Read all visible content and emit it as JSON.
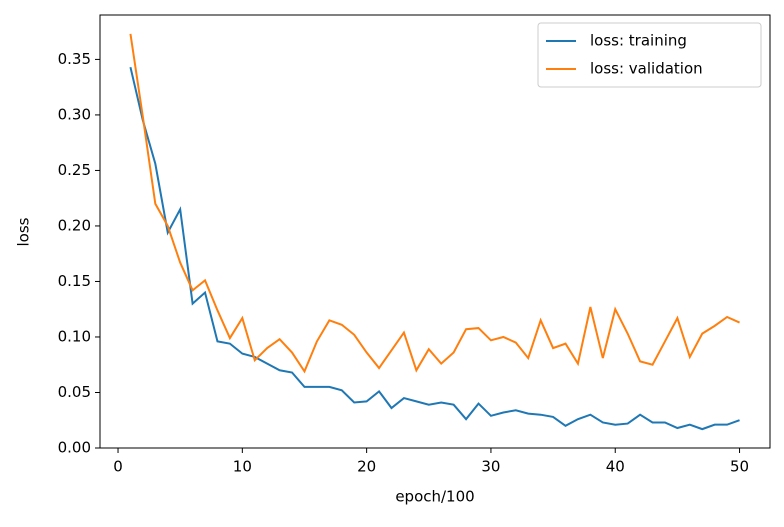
{
  "chart_data": {
    "type": "line",
    "xlabel": "epoch/100",
    "ylabel": "loss",
    "x": [
      1,
      2,
      3,
      4,
      5,
      6,
      7,
      8,
      9,
      10,
      11,
      12,
      13,
      14,
      15,
      16,
      17,
      18,
      19,
      20,
      21,
      22,
      23,
      24,
      25,
      26,
      27,
      28,
      29,
      30,
      31,
      32,
      33,
      34,
      35,
      36,
      37,
      38,
      39,
      40,
      41,
      42,
      43,
      44,
      45,
      46,
      47,
      48,
      49,
      50
    ],
    "series": [
      {
        "name": "loss: training",
        "color": "#1f77b4",
        "values": [
          0.343,
          0.295,
          0.256,
          0.194,
          0.215,
          0.13,
          0.14,
          0.096,
          0.094,
          0.085,
          0.082,
          0.076,
          0.07,
          0.068,
          0.055,
          0.055,
          0.055,
          0.052,
          0.041,
          0.042,
          0.051,
          0.036,
          0.045,
          0.042,
          0.039,
          0.041,
          0.039,
          0.026,
          0.04,
          0.029,
          0.032,
          0.034,
          0.031,
          0.03,
          0.028,
          0.02,
          0.026,
          0.03,
          0.023,
          0.021,
          0.022,
          0.03,
          0.023,
          0.023,
          0.018,
          0.021,
          0.017,
          0.021,
          0.021,
          0.025
        ]
      },
      {
        "name": "loss: validation",
        "color": "#ff7f0e",
        "values": [
          0.373,
          0.298,
          0.22,
          0.2,
          0.167,
          0.142,
          0.151,
          0.124,
          0.099,
          0.117,
          0.079,
          0.09,
          0.098,
          0.086,
          0.069,
          0.096,
          0.115,
          0.111,
          0.102,
          0.086,
          0.072,
          0.088,
          0.104,
          0.07,
          0.089,
          0.076,
          0.086,
          0.107,
          0.108,
          0.097,
          0.1,
          0.095,
          0.081,
          0.115,
          0.09,
          0.094,
          0.076,
          0.127,
          0.081,
          0.125,
          0.103,
          0.078,
          0.075,
          0.096,
          0.117,
          0.082,
          0.103,
          0.11,
          0.118,
          0.113
        ]
      }
    ],
    "xlim": [
      -1.45,
      52.45
    ],
    "xticks": [
      0,
      10,
      20,
      30,
      40,
      50
    ],
    "ylim": [
      0,
      0.39
    ],
    "yticks": [
      {
        "value": 0,
        "label": "0.00"
      },
      {
        "value": 0.05,
        "label": "0.05"
      },
      {
        "value": 0.1,
        "label": "0.10"
      },
      {
        "value": 0.15,
        "label": "0.15"
      },
      {
        "value": 0.2,
        "label": "0.20"
      },
      {
        "value": 0.25,
        "label": "0.25"
      },
      {
        "value": 0.3,
        "label": "0.30"
      },
      {
        "value": 0.35,
        "label": "0.35"
      }
    ],
    "legend": "upper right"
  }
}
